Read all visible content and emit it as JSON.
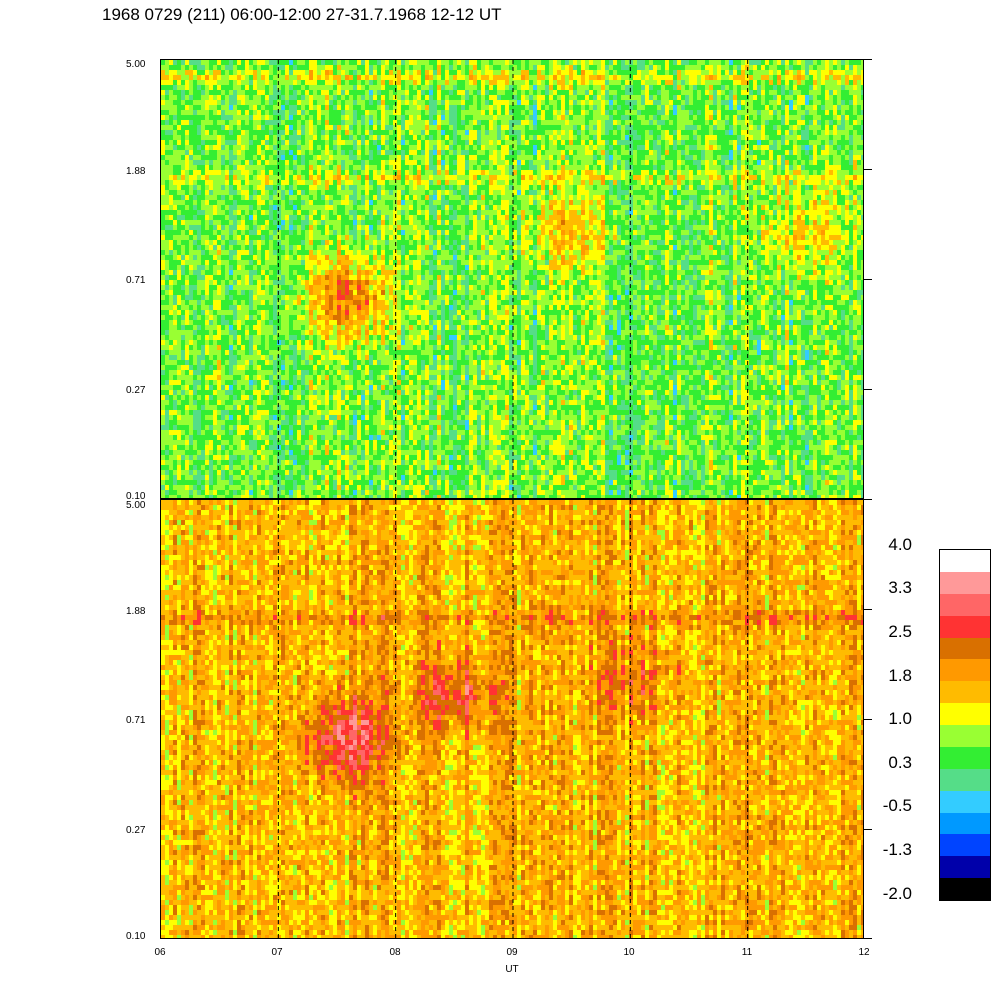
{
  "title": "1968 0729 (211) 06:00-12:00 27-31.7.1968  12-12 UT",
  "chart_data": [
    {
      "type": "heatmap",
      "panel": "top",
      "title": "",
      "xlabel": "UT",
      "ylabel": "",
      "x_range": [
        6,
        12
      ],
      "y_range": [
        0.1,
        5.0
      ],
      "y_scale": "log",
      "x_ticks": [
        "06",
        "07",
        "08",
        "09",
        "10",
        "11",
        "12"
      ],
      "y_ticks": [
        "5.00",
        "1.88",
        "0.71",
        "0.27",
        "0.10"
      ],
      "dashed_gridlines_x": [
        7,
        8,
        9,
        10,
        11
      ],
      "background_level": 0.6,
      "features": [
        {
          "name": "horizontal band",
          "y": 4.3,
          "level": 1.2
        },
        {
          "name": "horizontal band",
          "y": 1.75,
          "level": 1.1
        },
        {
          "name": "enhancement",
          "x_center": 7.6,
          "y_center": 0.6,
          "level": 2.2
        },
        {
          "name": "diffuse enhancement",
          "x_center": 9.5,
          "y_center": 1.1,
          "level": 1.4
        },
        {
          "name": "diffuse enhancement",
          "x_center": 11.5,
          "y_center": 1.1,
          "level": 1.4
        }
      ]
    },
    {
      "type": "heatmap",
      "panel": "bottom",
      "title": "",
      "xlabel": "UT",
      "ylabel": "",
      "x_range": [
        6,
        12
      ],
      "y_range": [
        0.1,
        5.0
      ],
      "y_scale": "log",
      "x_ticks": [
        "06",
        "07",
        "08",
        "09",
        "10",
        "11",
        "12"
      ],
      "y_ticks": [
        "5.00",
        "1.88",
        "0.71",
        "0.27",
        "0.10"
      ],
      "dashed_gridlines_x": [
        7,
        8,
        9,
        10,
        11
      ],
      "background_level": 1.6,
      "features": [
        {
          "name": "horizontal band",
          "y": 1.75,
          "level": 2.1
        },
        {
          "name": "enhancement",
          "x_center": 7.6,
          "y_center": 0.6,
          "level": 3.0
        },
        {
          "name": "enhancement",
          "x_center": 8.5,
          "y_center": 0.9,
          "level": 2.6
        },
        {
          "name": "diffuse band",
          "x_center": 10.0,
          "y_center": 1.0,
          "level": 2.2
        }
      ]
    }
  ],
  "colorbar": {
    "labels": [
      "4.0",
      "3.3",
      "2.5",
      "1.8",
      "1.0",
      "0.3",
      "-0.5",
      "-1.3",
      "-2.0"
    ],
    "min": -2.0,
    "max": 4.0,
    "colors": [
      "#ffffff",
      "#ff9999",
      "#ff6666",
      "#ff3333",
      "#d97000",
      "#ff9900",
      "#ffbb00",
      "#ffff00",
      "#99ff33",
      "#33ee33",
      "#55dd88",
      "#33ccff",
      "#0099ff",
      "#0044ff",
      "#0000aa",
      "#000000"
    ]
  }
}
